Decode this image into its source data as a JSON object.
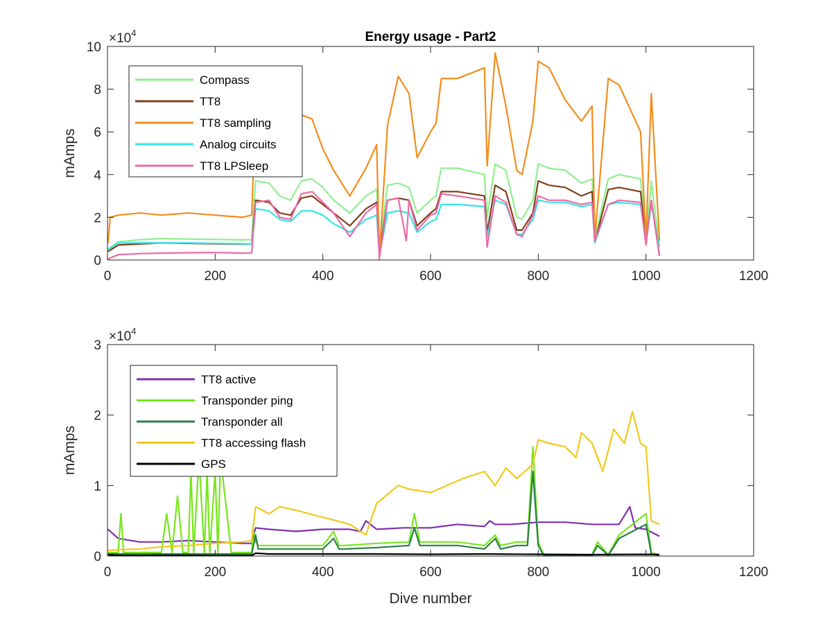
{
  "chart_data": [
    {
      "type": "line",
      "title": "Energy usage - Part2",
      "xlabel": "",
      "ylabel": "mAmps",
      "xlim": [
        0,
        1200
      ],
      "ylim": [
        0,
        100000
      ],
      "x_ticks": [
        "0",
        "200",
        "400",
        "600",
        "800",
        "1000",
        "1200"
      ],
      "y_ticks": [
        "0",
        "2",
        "4",
        "6",
        "8",
        "10"
      ],
      "y_multiplier": "×10",
      "y_multiplier_exp": "4",
      "legend_position": "top-left",
      "grid": false,
      "series": [
        {
          "name": "Compass",
          "color": "#8fef8f",
          "x": [
            1,
            20,
            60,
            100,
            150,
            200,
            250,
            268,
            275,
            300,
            320,
            340,
            360,
            380,
            400,
            420,
            450,
            480,
            500,
            505,
            520,
            540,
            560,
            575,
            600,
            610,
            620,
            650,
            700,
            705,
            720,
            740,
            760,
            770,
            790,
            800,
            820,
            850,
            880,
            900,
            905,
            930,
            950,
            990,
            1000,
            1010,
            1025
          ],
          "y": [
            5000,
            8500,
            9500,
            10000,
            9800,
            9600,
            9400,
            9500,
            37000,
            36000,
            30000,
            28000,
            37000,
            38000,
            34000,
            28000,
            22000,
            30000,
            33000,
            5000,
            35000,
            36000,
            34000,
            22000,
            28000,
            30000,
            43000,
            43000,
            40000,
            20000,
            45000,
            42000,
            20000,
            19000,
            28000,
            45000,
            43000,
            42000,
            36000,
            38000,
            10000,
            38000,
            40000,
            38000,
            10000,
            37000,
            6000
          ]
        },
        {
          "name": "TT8",
          "color": "#7f3f1a",
          "x": [
            1,
            20,
            60,
            100,
            150,
            200,
            250,
            268,
            275,
            300,
            320,
            340,
            360,
            380,
            400,
            420,
            450,
            480,
            500,
            505,
            520,
            540,
            560,
            575,
            600,
            610,
            620,
            650,
            700,
            705,
            720,
            740,
            760,
            770,
            790,
            800,
            820,
            850,
            880,
            900,
            905,
            930,
            950,
            990,
            1000,
            1010,
            1025
          ],
          "y": [
            4000,
            7000,
            7500,
            8000,
            7800,
            7600,
            7400,
            7500,
            28000,
            27000,
            22000,
            21000,
            29000,
            30000,
            26000,
            22000,
            16000,
            24000,
            27000,
            3000,
            28000,
            29000,
            28000,
            16000,
            22000,
            24000,
            32000,
            32000,
            30000,
            13000,
            35000,
            32000,
            14000,
            14000,
            22000,
            37000,
            35000,
            34000,
            30000,
            32000,
            8000,
            33000,
            34000,
            32000,
            8000,
            28000,
            2000
          ]
        },
        {
          "name": "TT8 sampling",
          "color": "#f28c1c",
          "x": [
            1,
            5,
            20,
            60,
            100,
            150,
            200,
            250,
            268,
            275,
            300,
            320,
            340,
            360,
            380,
            400,
            420,
            450,
            480,
            500,
            505,
            520,
            540,
            560,
            575,
            600,
            610,
            620,
            650,
            700,
            705,
            720,
            740,
            760,
            770,
            790,
            800,
            820,
            850,
            880,
            900,
            905,
            930,
            950,
            990,
            1000,
            1010,
            1025
          ],
          "y": [
            8000,
            20000,
            21000,
            22000,
            21000,
            22000,
            21000,
            20000,
            21000,
            70000,
            67000,
            62000,
            58000,
            68000,
            66000,
            52000,
            42000,
            30000,
            43000,
            54000,
            2000,
            63000,
            86000,
            78000,
            48000,
            60000,
            64000,
            85000,
            85000,
            90000,
            44000,
            97000,
            72000,
            42000,
            40000,
            65000,
            93000,
            90000,
            75000,
            65000,
            72000,
            10000,
            85000,
            82000,
            60000,
            10000,
            78000,
            9000
          ]
        },
        {
          "name": "Analog circuits",
          "color": "#33e6e6",
          "x": [
            1,
            20,
            60,
            100,
            150,
            200,
            250,
            268,
            275,
            300,
            320,
            340,
            360,
            380,
            400,
            420,
            450,
            480,
            500,
            505,
            520,
            540,
            560,
            575,
            600,
            610,
            620,
            650,
            700,
            705,
            720,
            740,
            760,
            770,
            790,
            800,
            820,
            850,
            880,
            900,
            905,
            930,
            950,
            990,
            1000,
            1010,
            1025
          ],
          "y": [
            5000,
            8000,
            8000,
            8000,
            8000,
            7800,
            7600,
            7500,
            24000,
            23000,
            19000,
            18000,
            23000,
            23000,
            21000,
            17000,
            13000,
            19000,
            21000,
            2000,
            22000,
            23000,
            22000,
            13000,
            18000,
            19000,
            26000,
            26000,
            25000,
            11000,
            28000,
            26000,
            12000,
            12000,
            19000,
            28000,
            27000,
            27000,
            25000,
            26000,
            8000,
            26000,
            27000,
            26000,
            8000,
            26000,
            6000
          ]
        },
        {
          "name": "TT8 LPSleep",
          "color": "#ec6aa4",
          "x": [
            1,
            20,
            60,
            100,
            150,
            200,
            250,
            268,
            275,
            300,
            320,
            340,
            360,
            380,
            400,
            420,
            450,
            480,
            500,
            505,
            520,
            540,
            555,
            560,
            575,
            600,
            610,
            620,
            650,
            700,
            705,
            720,
            740,
            760,
            770,
            790,
            800,
            820,
            850,
            880,
            900,
            905,
            930,
            950,
            990,
            1000,
            1010,
            1025
          ],
          "y": [
            500,
            2500,
            3000,
            3200,
            3400,
            3500,
            3200,
            3300,
            27000,
            28000,
            20000,
            19000,
            31000,
            32000,
            27000,
            22000,
            11000,
            22000,
            26000,
            500,
            28000,
            29000,
            9000,
            28000,
            14000,
            21000,
            22000,
            31000,
            30000,
            28000,
            6000,
            30000,
            27000,
            12000,
            11000,
            21000,
            30000,
            28000,
            28000,
            26000,
            27000,
            9000,
            26000,
            28000,
            27000,
            7000,
            28000,
            2000
          ]
        }
      ]
    },
    {
      "type": "line",
      "title": "",
      "xlabel": "Dive number",
      "ylabel": "mAmps",
      "xlim": [
        0,
        1200
      ],
      "ylim": [
        0,
        30000
      ],
      "x_ticks": [
        "0",
        "200",
        "400",
        "600",
        "800",
        "1000",
        "1200"
      ],
      "y_ticks": [
        "0",
        "1",
        "2",
        "3"
      ],
      "y_multiplier": "×10",
      "y_multiplier_exp": "4",
      "legend_position": "top-left",
      "grid": false,
      "series": [
        {
          "name": "TT8 active",
          "color": "#7e2fb0",
          "x": [
            1,
            20,
            60,
            100,
            150,
            200,
            250,
            268,
            275,
            300,
            350,
            400,
            450,
            470,
            480,
            500,
            550,
            600,
            650,
            700,
            710,
            720,
            750,
            800,
            850,
            900,
            950,
            970,
            980,
            1000,
            1025
          ],
          "y": [
            3800,
            2500,
            2000,
            2000,
            2200,
            2000,
            1800,
            1800,
            4000,
            3800,
            3500,
            3800,
            3800,
            3500,
            5000,
            3800,
            4000,
            4000,
            4500,
            4200,
            5000,
            4500,
            4500,
            4800,
            4800,
            4500,
            4500,
            7000,
            4000,
            3800,
            2800
          ]
        },
        {
          "name": "Transponder ping",
          "color": "#76e61c",
          "x": [
            1,
            20,
            25,
            30,
            60,
            100,
            110,
            120,
            130,
            140,
            150,
            155,
            160,
            170,
            180,
            185,
            190,
            200,
            205,
            210,
            230,
            268,
            270,
            275,
            280,
            300,
            400,
            420,
            430,
            440,
            500,
            560,
            570,
            580,
            600,
            650,
            700,
            720,
            730,
            760,
            780,
            790,
            800,
            810,
            860,
            900,
            910,
            930,
            950,
            1000,
            1010,
            1025
          ],
          "y": [
            500,
            500,
            6000,
            500,
            500,
            500,
            6000,
            500,
            8500,
            500,
            500,
            12000,
            500,
            14000,
            500,
            12000,
            500,
            12000,
            500,
            14000,
            500,
            500,
            4000,
            2000,
            1500,
            1500,
            1500,
            3500,
            1500,
            1500,
            1800,
            2000,
            6000,
            2000,
            2000,
            2000,
            1500,
            3000,
            1500,
            2000,
            2000,
            15500,
            2000,
            200,
            200,
            200,
            2000,
            200,
            3000,
            6000,
            500,
            200
          ]
        },
        {
          "name": "Transponder all",
          "color": "#2a7f45",
          "x": [
            1,
            20,
            60,
            100,
            150,
            200,
            250,
            268,
            275,
            280,
            300,
            400,
            420,
            430,
            440,
            500,
            560,
            570,
            580,
            600,
            650,
            700,
            720,
            730,
            760,
            780,
            790,
            800,
            810,
            860,
            900,
            910,
            930,
            950,
            1000,
            1010,
            1025
          ],
          "y": [
            300,
            300,
            300,
            300,
            300,
            300,
            300,
            300,
            3000,
            1000,
            1000,
            1000,
            2500,
            1000,
            1000,
            1200,
            1500,
            4000,
            1500,
            1500,
            1500,
            1000,
            2500,
            1000,
            1500,
            1500,
            12000,
            1500,
            100,
            100,
            100,
            1500,
            100,
            2500,
            4500,
            300,
            100
          ]
        },
        {
          "name": "TT8 accessing flash",
          "color": "#f2c81a",
          "x": [
            1,
            20,
            60,
            100,
            150,
            200,
            250,
            268,
            275,
            300,
            320,
            350,
            400,
            450,
            480,
            500,
            540,
            560,
            600,
            630,
            660,
            700,
            720,
            740,
            760,
            790,
            800,
            820,
            850,
            870,
            880,
            900,
            920,
            940,
            960,
            975,
            990,
            1000,
            1010,
            1025
          ],
          "y": [
            800,
            900,
            1000,
            1300,
            1500,
            1800,
            2000,
            2200,
            7000,
            6000,
            7000,
            6500,
            5500,
            4500,
            3000,
            7500,
            10000,
            9500,
            9000,
            10000,
            11000,
            12000,
            10000,
            12500,
            11000,
            13000,
            16500,
            16000,
            15500,
            14000,
            17500,
            16000,
            12000,
            18000,
            16000,
            20500,
            16000,
            15500,
            5000,
            4500
          ]
        },
        {
          "name": "GPS",
          "color": "#000000",
          "x": [
            1,
            20,
            60,
            100,
            150,
            200,
            250,
            268,
            275,
            300,
            400,
            500,
            600,
            700,
            800,
            900,
            1000,
            1025
          ],
          "y": [
            200,
            100,
            80,
            100,
            100,
            80,
            80,
            80,
            400,
            300,
            300,
            300,
            250,
            300,
            250,
            200,
            250,
            200
          ]
        }
      ]
    }
  ]
}
